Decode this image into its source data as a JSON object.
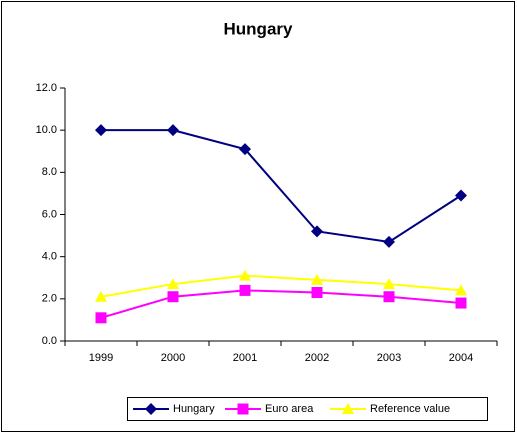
{
  "chart_data": {
    "type": "line",
    "title": "Hungary",
    "categories": [
      "1999",
      "2000",
      "2001",
      "2002",
      "2003",
      "2004"
    ],
    "series": [
      {
        "name": "Hungary",
        "color": "#000080",
        "marker": "diamond",
        "values": [
          10.0,
          10.0,
          9.1,
          5.2,
          4.7,
          6.9
        ]
      },
      {
        "name": "Euro area",
        "color": "#ff00ff",
        "marker": "square",
        "values": [
          1.1,
          2.1,
          2.4,
          2.3,
          2.1,
          1.8
        ]
      },
      {
        "name": "Reference value",
        "color": "#ffff00",
        "marker": "triangle",
        "values": [
          2.1,
          2.7,
          3.1,
          2.9,
          2.7,
          2.4
        ]
      }
    ],
    "ylim": [
      0,
      12
    ],
    "yticks": [
      {
        "value": 0,
        "label": "0.0"
      },
      {
        "value": 2,
        "label": "2.0"
      },
      {
        "value": 4,
        "label": "4.0"
      },
      {
        "value": 6,
        "label": "6.0"
      },
      {
        "value": 8,
        "label": "8.0"
      },
      {
        "value": 10,
        "label": "10.0"
      },
      {
        "value": 12,
        "label": "12.0"
      }
    ],
    "grid": false,
    "legend": "bottom"
  }
}
